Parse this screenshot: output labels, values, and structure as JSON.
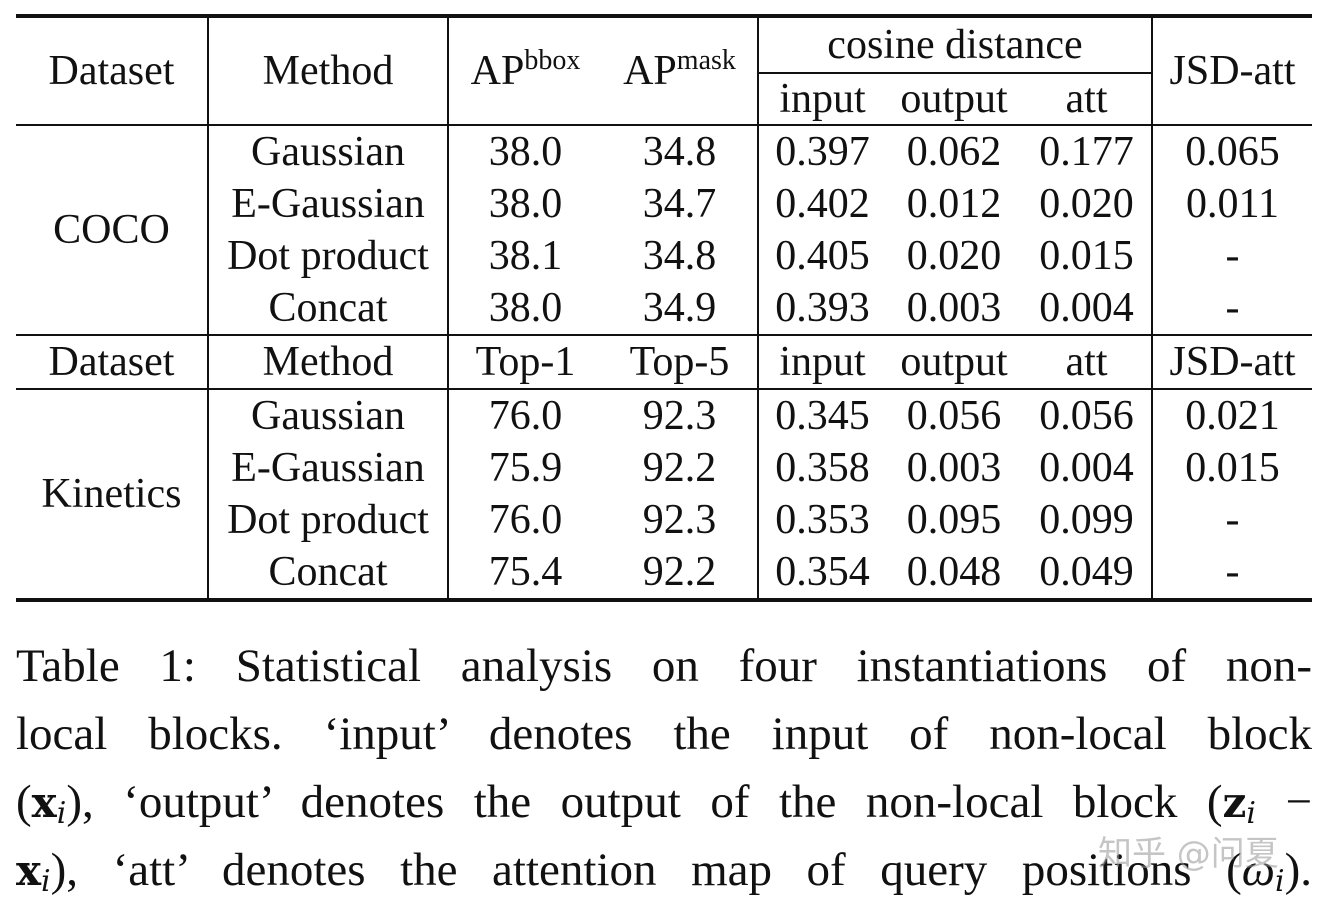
{
  "table": {
    "header": {
      "dataset": "Dataset",
      "method": "Method",
      "ap_bbox_base": "AP",
      "ap_bbox_sup": "bbox",
      "ap_mask_base": "AP",
      "ap_mask_sup": "mask",
      "cosine_group": "cosine distance",
      "input": "input",
      "output": "output",
      "att": "att",
      "jsd": "JSD-att"
    },
    "coco": {
      "dataset": "COCO",
      "rows": [
        {
          "method": "Gaussian",
          "m1": "38.0",
          "m2": "34.8",
          "input": "0.397",
          "output": "0.062",
          "att": "0.177",
          "jsd": "0.065"
        },
        {
          "method": "E-Gaussian",
          "m1": "38.0",
          "m2": "34.7",
          "input": "0.402",
          "output": "0.012",
          "att": "0.020",
          "jsd": "0.011"
        },
        {
          "method": "Dot product",
          "m1": "38.1",
          "m2": "34.8",
          "input": "0.405",
          "output": "0.020",
          "att": "0.015",
          "jsd": "-"
        },
        {
          "method": "Concat",
          "m1": "38.0",
          "m2": "34.9",
          "input": "0.393",
          "output": "0.003",
          "att": "0.004",
          "jsd": "-"
        }
      ]
    },
    "header2": {
      "dataset": "Dataset",
      "method": "Method",
      "m1": "Top-1",
      "m2": "Top-5",
      "input": "input",
      "output": "output",
      "att": "att",
      "jsd": "JSD-att"
    },
    "kinetics": {
      "dataset": "Kinetics",
      "rows": [
        {
          "method": "Gaussian",
          "m1": "76.0",
          "m2": "92.3",
          "input": "0.345",
          "output": "0.056",
          "att": "0.056",
          "jsd": "0.021"
        },
        {
          "method": "E-Gaussian",
          "m1": "75.9",
          "m2": "92.2",
          "input": "0.358",
          "output": "0.003",
          "att": "0.004",
          "jsd": "0.015"
        },
        {
          "method": "Dot product",
          "m1": "76.0",
          "m2": "92.3",
          "input": "0.353",
          "output": "0.095",
          "att": "0.099",
          "jsd": "-"
        },
        {
          "method": "Concat",
          "m1": "75.4",
          "m2": "92.2",
          "input": "0.354",
          "output": "0.048",
          "att": "0.049",
          "jsd": "-"
        }
      ]
    }
  },
  "caption": {
    "line1": "Table 1: Statistical analysis on four instantiations of non-",
    "line2": "local blocks. ‘input’ denotes the input of non-local block",
    "line3_a": "(",
    "line3_x": "x",
    "line3_i": "i",
    "line3_b": "), ‘output’ denotes the output of the non-local block (",
    "line3_z": "z",
    "line3_zi": "i",
    "line3_c": " −",
    "line4_x": "x",
    "line4_i": "i",
    "line4_b": "), ‘att’ denotes the attention map of query positions (",
    "line4_w": "ω",
    "line4_wi": "i",
    "line4_c": ")."
  },
  "watermark": "知乎 @问夏"
}
